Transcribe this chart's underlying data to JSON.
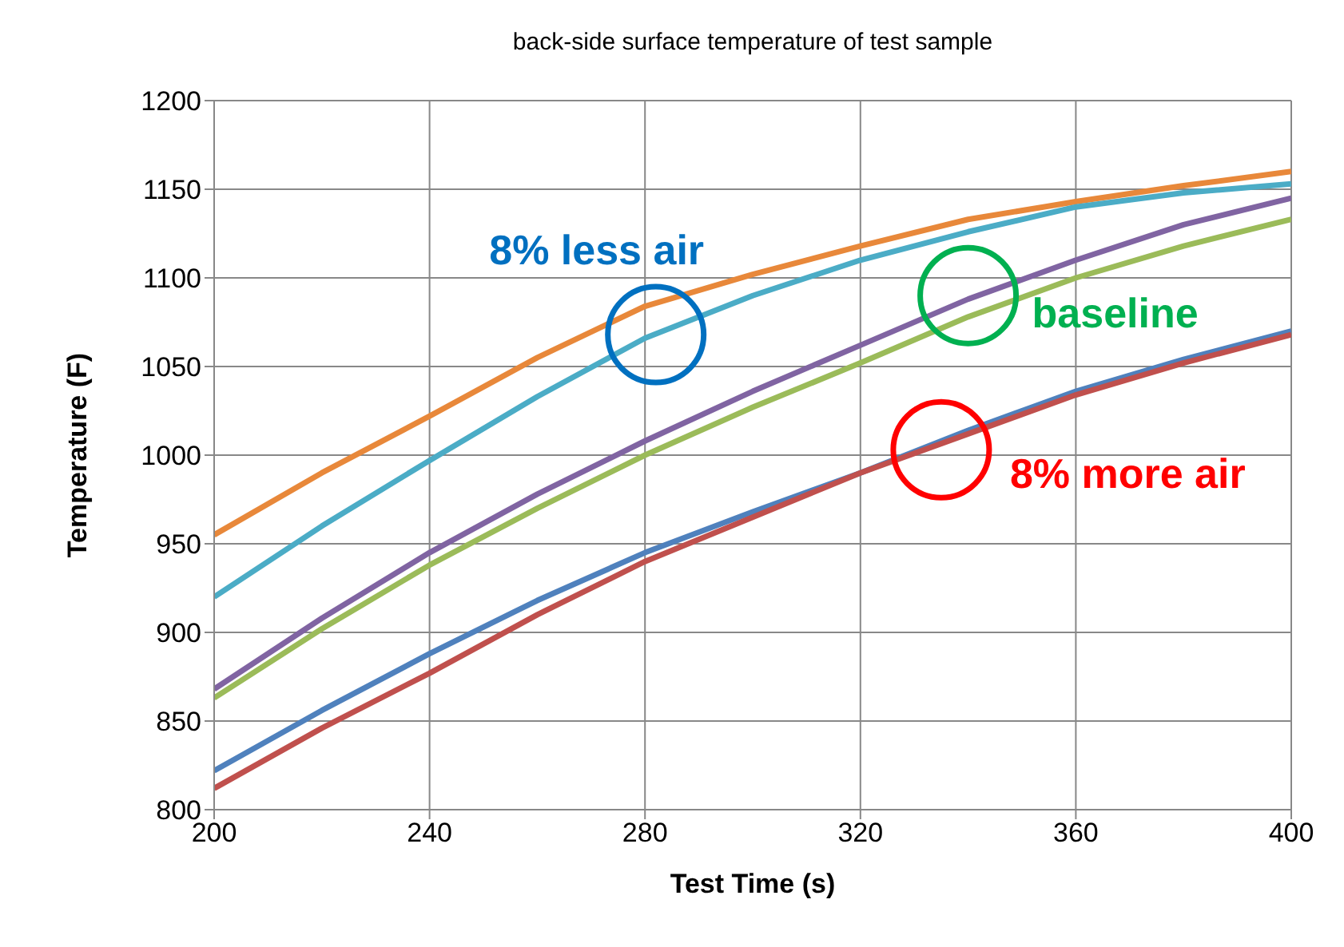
{
  "chart_data": {
    "type": "line",
    "title": "back-side surface temperature of test sample",
    "xlabel": "Test Time (s)",
    "ylabel": "Temperature (F)",
    "x": [
      200,
      220,
      240,
      260,
      280,
      300,
      320,
      340,
      360,
      380,
      400
    ],
    "series": [
      {
        "color": "#e8883a",
        "values": [
          955,
          990,
          1022,
          1055,
          1084,
          1102,
          1118,
          1133,
          1143,
          1152,
          1160
        ]
      },
      {
        "color": "#4bacc6",
        "values": [
          920,
          960,
          997,
          1033,
          1066,
          1090,
          1110,
          1126,
          1140,
          1148,
          1153
        ]
      },
      {
        "color": "#8064a2",
        "values": [
          868,
          908,
          945,
          978,
          1008,
          1036,
          1062,
          1088,
          1110,
          1130,
          1145
        ]
      },
      {
        "color": "#9bbb59",
        "values": [
          863,
          902,
          938,
          970,
          1000,
          1027,
          1052,
          1078,
          1100,
          1118,
          1133
        ]
      },
      {
        "color": "#4f81bd",
        "values": [
          822,
          856,
          888,
          918,
          945,
          968,
          990,
          1014,
          1036,
          1054,
          1070
        ]
      },
      {
        "color": "#c0504d",
        "values": [
          812,
          846,
          877,
          910,
          940,
          965,
          990,
          1012,
          1034,
          1052,
          1068
        ]
      }
    ],
    "annotations": [
      {
        "text": "8% less air",
        "x": 282,
        "y": 1068
      },
      {
        "text": "baseline",
        "x": 340,
        "y": 1090
      },
      {
        "text": "8% more air",
        "x": 335,
        "y": 1003
      }
    ],
    "xlim": [
      200,
      400
    ],
    "xticks": [
      200,
      240,
      280,
      320,
      360,
      400
    ],
    "ylim": [
      800,
      1200
    ],
    "yticks": [
      800,
      850,
      900,
      950,
      1000,
      1050,
      1100,
      1150,
      1200
    ],
    "grid": true,
    "marker": "none",
    "line_style": "solid"
  }
}
